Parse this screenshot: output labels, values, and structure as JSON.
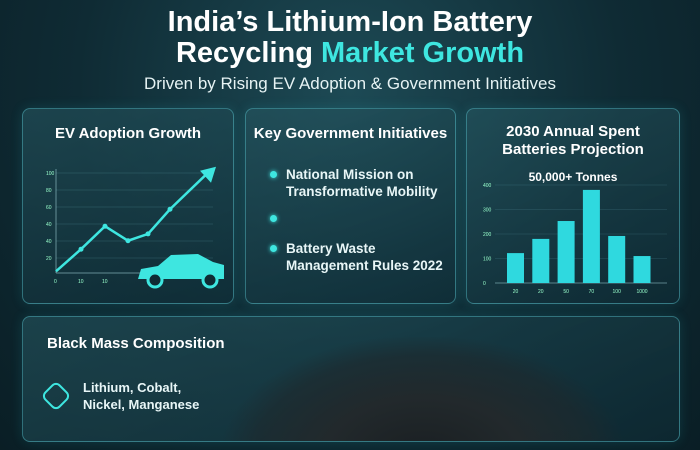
{
  "header": {
    "title_line1": "India’s Lithium-Ion Battery",
    "title_line2_plain": "Recycling ",
    "title_line2_accent": "Market Growth",
    "subtitle": "Driven by Rising EV Adoption & Government Initiatives"
  },
  "ev_card": {
    "title": "EV Adoption Growth"
  },
  "gov_card": {
    "title": "Key Government Initiatives",
    "items": [
      {
        "line1": "National Mission on",
        "line2": "Transformative Mobility"
      },
      {
        "line1": "",
        "line2": ""
      },
      {
        "line1": "Battery Waste",
        "line2": "Management Rules 2022"
      }
    ]
  },
  "proj_card": {
    "title_line1": "2030 Annual Spent",
    "title_line2": "Batteries Projection",
    "highlight": "50,000+ Tonnes"
  },
  "black_mass": {
    "title": "Black Mass Composition",
    "line1": "Lithium, Cobalt,",
    "line2": "Nickel, Manganese",
    "icon": "layers-hexagon-icon"
  },
  "colors": {
    "accent": "#3ee6e0",
    "background": "#0f2b34"
  },
  "chart_data": [
    {
      "type": "line",
      "title": "EV Adoption Growth",
      "y_ticks": [
        "100",
        "80",
        "60",
        "40",
        "40",
        "20"
      ],
      "x_ticks": [
        "0",
        "10",
        "10"
      ],
      "values": [
        2,
        28,
        55,
        38,
        46,
        75,
        118
      ],
      "trend_arrow": true,
      "grid": true
    },
    {
      "type": "bar",
      "title": "2030 Annual Spent Batteries Projection",
      "annotation": "50,000+ Tonnes",
      "categories": [
        "20",
        "20",
        "50",
        "70",
        "100",
        "1000"
      ],
      "values": [
        122,
        180,
        253,
        380,
        192,
        110
      ],
      "y_ticks": [
        "400",
        "300",
        "200",
        "100",
        "0"
      ],
      "ylim": [
        0,
        400
      ],
      "grid": true
    }
  ]
}
